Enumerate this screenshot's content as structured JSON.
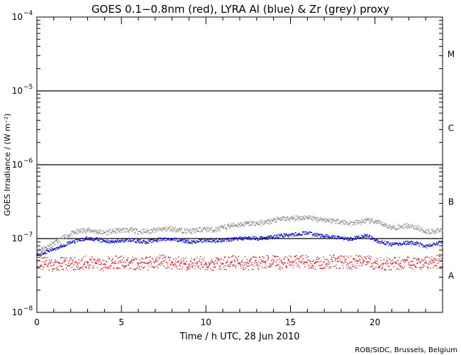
{
  "chart_data": {
    "type": "scatter",
    "title": "GOES 0.1−0.8nm (red), LYRA Al (blue) & Zr (grey) proxy",
    "xlabel": "Time / h UTC, 28 Jun 2010",
    "ylabel": "GOES Irradiance / (W m⁻²)",
    "xlim": [
      0,
      24
    ],
    "ylim": [
      1e-08,
      0.0001
    ],
    "yscale": "log",
    "x_ticks": [
      0,
      5,
      10,
      15,
      20
    ],
    "x_tick_labels": [
      "0",
      "5",
      "10",
      "15",
      "20"
    ],
    "y_ticks": [
      {
        "base": "10",
        "exp": "−8",
        "value": 1e-08
      },
      {
        "base": "10",
        "exp": "−7",
        "value": 1e-07
      },
      {
        "base": "10",
        "exp": "−6",
        "value": 1e-06
      },
      {
        "base": "10",
        "exp": "−5",
        "value": 1e-05
      },
      {
        "base": "10",
        "exp": "−4",
        "value": 0.0001
      }
    ],
    "flare_class_lines": [
      1e-07,
      1e-06,
      1e-05
    ],
    "flare_classes": [
      {
        "label": "A",
        "value": 3.2e-08
      },
      {
        "label": "B",
        "value": 3.2e-07
      },
      {
        "label": "C",
        "value": 3.2e-06
      },
      {
        "label": "M",
        "value": 3.2e-05
      }
    ],
    "series": [
      {
        "name": "Zr (grey) proxy",
        "color": "#888888",
        "x": [
          0,
          0.5,
          1,
          1.5,
          2,
          2.5,
          3,
          3.5,
          4,
          4.5,
          5,
          5.5,
          6,
          6.5,
          7,
          7.5,
          8,
          8.5,
          9,
          9.5,
          10,
          10.5,
          11,
          11.5,
          12,
          12.5,
          13,
          13.5,
          14,
          14.5,
          15,
          15.5,
          16,
          16.5,
          17,
          17.5,
          18,
          18.5,
          19,
          19.5,
          20,
          20.5,
          21,
          21.5,
          22,
          22.5,
          23,
          23.5,
          24
        ],
        "y": [
          7e-08,
          7.5e-08,
          8.5e-08,
          1e-07,
          1.15e-07,
          1.25e-07,
          1.3e-07,
          1.25e-07,
          1.2e-07,
          1.25e-07,
          1.3e-07,
          1.3e-07,
          1.25e-07,
          1.25e-07,
          1.3e-07,
          1.35e-07,
          1.35e-07,
          1.3e-07,
          1.25e-07,
          1.3e-07,
          1.35e-07,
          1.3e-07,
          1.4e-07,
          1.5e-07,
          1.55e-07,
          1.6e-07,
          1.6e-07,
          1.65e-07,
          1.75e-07,
          1.85e-07,
          1.85e-07,
          1.9e-07,
          1.95e-07,
          1.85e-07,
          1.8e-07,
          1.75e-07,
          1.7e-07,
          1.6e-07,
          1.65e-07,
          1.75e-07,
          1.7e-07,
          1.55e-07,
          1.4e-07,
          1.45e-07,
          1.5e-07,
          1.4e-07,
          1.25e-07,
          1.25e-07,
          1.3e-07
        ]
      },
      {
        "name": "LYRA Al (blue)",
        "color": "#0000cc",
        "x": [
          0,
          0.5,
          1,
          1.5,
          2,
          2.5,
          3,
          3.5,
          4,
          4.5,
          5,
          5.5,
          6,
          6.5,
          7,
          7.5,
          8,
          8.5,
          9,
          9.5,
          10,
          10.5,
          11,
          11.5,
          12,
          12.5,
          13,
          13.5,
          14,
          14.5,
          15,
          15.5,
          16,
          16.5,
          17,
          17.5,
          18,
          18.5,
          19,
          19.5,
          20,
          20.5,
          21,
          21.5,
          22,
          22.5,
          23,
          23.5,
          24
        ],
        "y": [
          6e-08,
          6.5e-08,
          7.2e-08,
          8e-08,
          8.8e-08,
          9.5e-08,
          1e-07,
          9.8e-08,
          9.2e-08,
          9e-08,
          9.3e-08,
          9.6e-08,
          9.2e-08,
          9e-08,
          9.5e-08,
          9.8e-08,
          9.8e-08,
          9.5e-08,
          9e-08,
          9.2e-08,
          9.5e-08,
          9.3e-08,
          9.6e-08,
          9.8e-08,
          1e-07,
          1.02e-07,
          1e-07,
          1.02e-07,
          1.05e-07,
          1.1e-07,
          1.12e-07,
          1.15e-07,
          1.2e-07,
          1.12e-07,
          1.08e-07,
          1.05e-07,
          1.02e-07,
          9.8e-08,
          1.05e-07,
          1.1e-07,
          9.5e-08,
          8.8e-08,
          8.3e-08,
          8.5e-08,
          8.8e-08,
          8.6e-08,
          7.8e-08,
          8.5e-08,
          9e-08
        ]
      },
      {
        "name": "GOES 0.1−0.8nm (red)",
        "color": "#dd0000",
        "x": [
          0,
          0.5,
          1,
          1.5,
          2,
          2.5,
          3,
          3.5,
          4,
          4.5,
          5,
          5.5,
          6,
          6.5,
          7,
          7.5,
          8,
          8.5,
          9,
          9.5,
          10,
          10.5,
          11,
          11.5,
          12,
          12.5,
          13,
          13.5,
          14,
          14.5,
          15,
          15.5,
          16,
          16.5,
          17,
          17.5,
          18,
          18.5,
          19,
          19.5,
          20,
          20.5,
          21,
          21.5,
          22,
          22.5,
          23,
          23.5,
          24
        ],
        "y": [
          5e-08,
          4.5e-08,
          4.4e-08,
          4.6e-08,
          4.5e-08,
          4.7e-08,
          4.8e-08,
          4.6e-08,
          4.5e-08,
          4.7e-08,
          4.8e-08,
          4.6e-08,
          4.5e-08,
          4.6e-08,
          4.8e-08,
          4.9e-08,
          4.7e-08,
          4.6e-08,
          4.5e-08,
          4.7e-08,
          4.6e-08,
          4.5e-08,
          4.6e-08,
          4.8e-08,
          4.7e-08,
          4.6e-08,
          4.7e-08,
          4.8e-08,
          4.8e-08,
          4.7e-08,
          4.8e-08,
          4.9e-08,
          4.8e-08,
          4.7e-08,
          4.8e-08,
          4.9e-08,
          4.8e-08,
          4.7e-08,
          4.9e-08,
          4.8e-08,
          4.7e-08,
          4.6e-08,
          4.5e-08,
          4.6e-08,
          4.7e-08,
          4.6e-08,
          4.7e-08,
          4.8e-08,
          5e-08
        ]
      }
    ]
  },
  "footer": "ROB/SIDC, Brussels, Belgium"
}
